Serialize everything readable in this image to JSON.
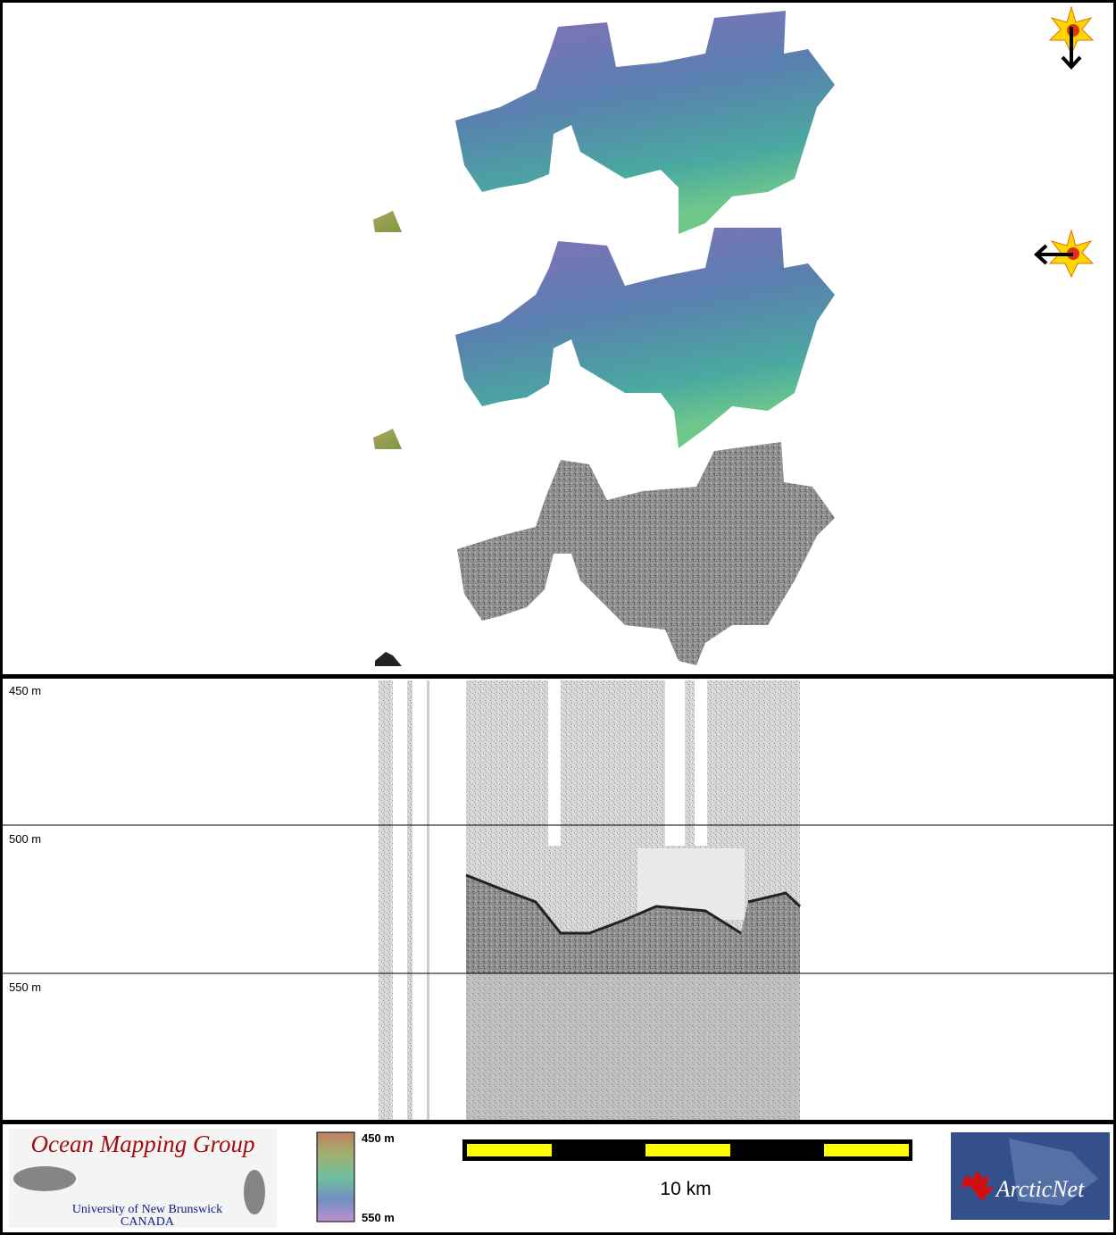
{
  "profile": {
    "depth_labels": [
      "450 m",
      "500 m",
      "550 m"
    ]
  },
  "footer": {
    "logo_left": {
      "title": "Ocean Mapping Group",
      "line1": "University of New Brunswick",
      "line2": "CANADA"
    },
    "colorbar": {
      "top_label": "450 m",
      "bottom_label": "550 m"
    },
    "scale": {
      "label": "10 km"
    },
    "logo_right": {
      "title": "ArcticNet"
    }
  }
}
